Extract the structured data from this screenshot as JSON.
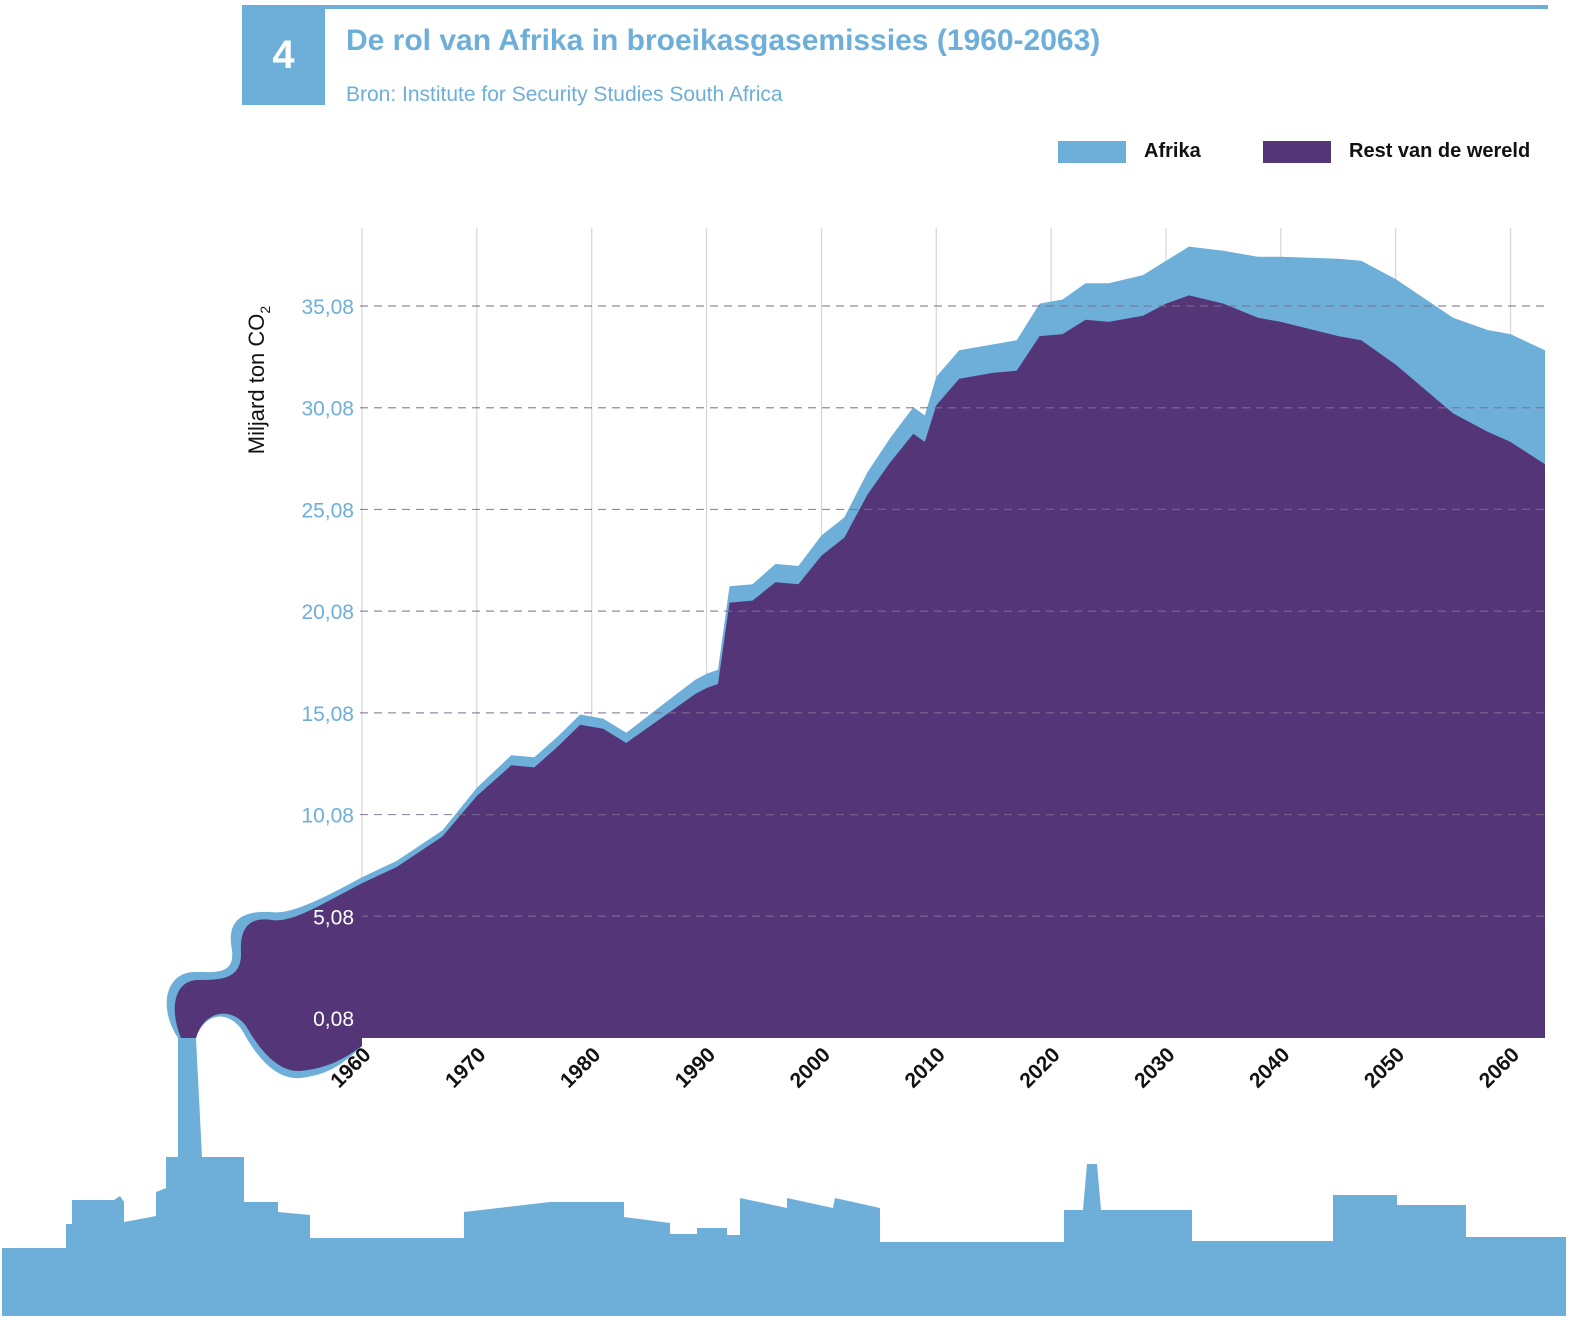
{
  "header": {
    "number": "4",
    "title": "De rol van Afrika in broeikasgasemissies (1960-2063)",
    "source": "Bron: Institute for Security Studies South Africa"
  },
  "legend": [
    {
      "label": "Afrika",
      "color": "#6dafd9"
    },
    {
      "label": "Rest van de wereld",
      "color": "#543577"
    }
  ],
  "colors": {
    "africa": "#6dafd9",
    "rest": "#543577",
    "accent": "#6dafd9"
  },
  "chart_data": {
    "type": "area",
    "stacked": true,
    "title": "De rol van Afrika in broeikasgasemissies (1960-2063)",
    "ylabel": "Miljard ton CO₂",
    "xlabel": "",
    "xlim": [
      1960,
      2063
    ],
    "ylim": [
      0.08,
      40
    ],
    "yticks": [
      0.08,
      5.08,
      10.08,
      15.08,
      20.08,
      25.08,
      30.08,
      35.08
    ],
    "ytick_labels": [
      "0,08",
      "5,08",
      "10,08",
      "15,08",
      "20,08",
      "25,08",
      "30,08",
      "35,08"
    ],
    "xticks": [
      1960,
      1970,
      1980,
      1990,
      2000,
      2010,
      2020,
      2030,
      2040,
      2050,
      2060
    ],
    "xtick_labels": [
      "1960",
      "1970",
      "1980",
      "1990",
      "2000",
      "2010",
      "2020",
      "2030",
      "2040",
      "2050",
      "2060"
    ],
    "grid": {
      "vertical": true,
      "horizontal_dashed": true
    },
    "legend_position": "top-right",
    "x": [
      1960,
      1963,
      1967,
      1970,
      1973,
      1975,
      1977,
      1979,
      1981,
      1983,
      1986,
      1989,
      1990,
      1991,
      1992,
      1994,
      1996,
      1998,
      2000,
      2002,
      2004,
      2006,
      2008,
      2009,
      2010,
      2012,
      2015,
      2017,
      2019,
      2021,
      2023,
      2025,
      2028,
      2030,
      2032,
      2035,
      2038,
      2040,
      2045,
      2047,
      2050,
      2055,
      2058,
      2060,
      2063
    ],
    "series": [
      {
        "name": "Rest van de wereld",
        "values": [
          6.7,
          7.5,
          9.0,
          11.0,
          12.5,
          12.4,
          13.4,
          14.5,
          14.3,
          13.6,
          14.8,
          16.0,
          16.3,
          16.5,
          20.5,
          20.6,
          21.5,
          21.4,
          22.8,
          23.7,
          25.8,
          27.4,
          28.8,
          28.4,
          30.2,
          31.5,
          31.8,
          31.9,
          33.6,
          33.7,
          34.4,
          34.3,
          34.6,
          35.2,
          35.6,
          35.2,
          34.5,
          34.3,
          33.6,
          33.4,
          32.2,
          29.8,
          28.9,
          28.4,
          27.3
        ]
      },
      {
        "name": "Afrika",
        "values": [
          0.3,
          0.3,
          0.3,
          0.4,
          0.5,
          0.5,
          0.5,
          0.5,
          0.5,
          0.5,
          0.6,
          0.7,
          0.7,
          0.7,
          0.8,
          0.8,
          0.9,
          0.9,
          1.0,
          1.0,
          1.1,
          1.2,
          1.3,
          1.3,
          1.4,
          1.4,
          1.4,
          1.5,
          1.6,
          1.7,
          1.8,
          1.9,
          2.0,
          2.1,
          2.4,
          2.6,
          3.0,
          3.2,
          3.8,
          3.9,
          4.2,
          4.7,
          5.0,
          5.3,
          5.6
        ]
      }
    ]
  }
}
